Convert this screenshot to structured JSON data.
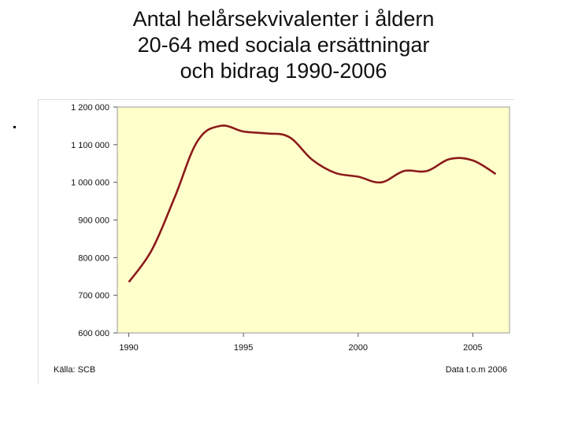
{
  "chart_data": {
    "type": "line",
    "title_lines": [
      "Antal helårsekvivalenter i åldern",
      "20-64 med sociala ersättningar",
      "och bidrag 1990-2006"
    ],
    "source": "Källa: SCB",
    "data_note": "Data t.o.m 2006",
    "xlim": [
      1989.5,
      2006.6
    ],
    "ylim": [
      600000,
      1200000
    ],
    "x_ticks": [
      1990,
      1995,
      2000,
      2005
    ],
    "y_ticks": [
      600000,
      700000,
      800000,
      900000,
      1000000,
      1100000,
      1200000
    ],
    "y_tick_labels": [
      "600 000",
      "700 000",
      "800 000",
      "900 000",
      "1 000 000",
      "1 100 000",
      "1 200 000"
    ],
    "series": [
      {
        "color": "#8b1a1a",
        "x": [
          1990,
          1991,
          1992,
          1993,
          1994,
          1995,
          1996,
          1997,
          1998,
          1999,
          2000,
          2001,
          2002,
          2003,
          2004,
          2005,
          2006
        ],
        "values": [
          735000,
          820000,
          960000,
          1110000,
          1150000,
          1135000,
          1130000,
          1120000,
          1060000,
          1025000,
          1015000,
          1000000,
          1030000,
          1030000,
          1062000,
          1058000,
          1022000
        ]
      }
    ],
    "plot_background": "#ffffcc"
  }
}
